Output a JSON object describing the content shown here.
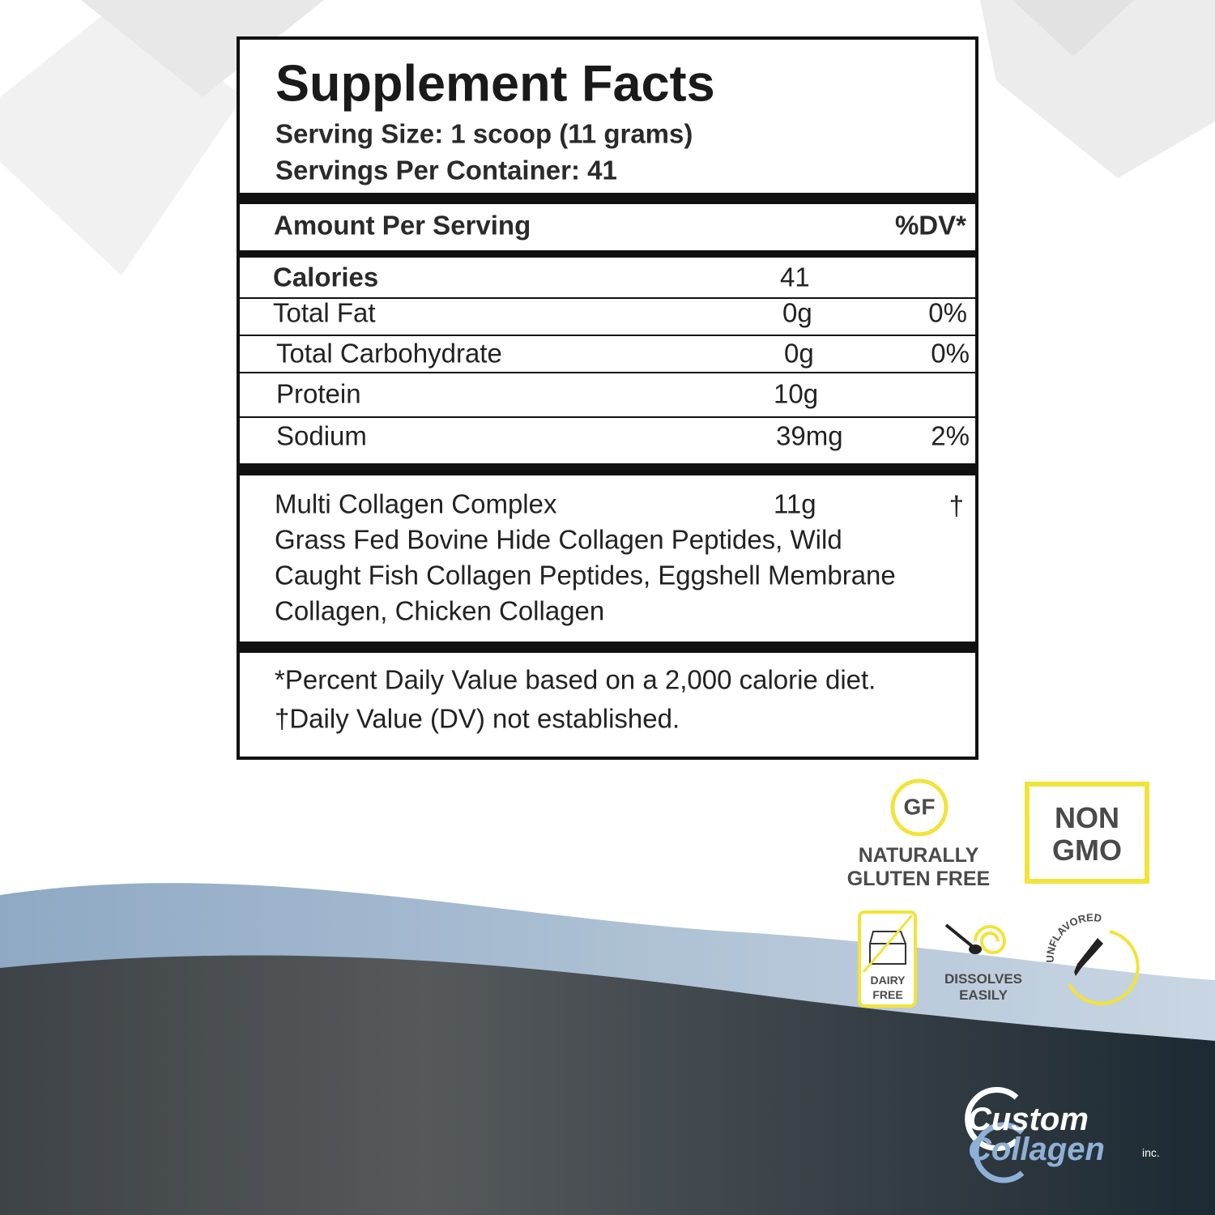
{
  "label": {
    "title": "Supplement Facts",
    "serving_size": "Serving Size: 1 scoop (11 grams)",
    "servings_per_container": "Servings Per Container: 41",
    "header": {
      "amount": "Amount Per Serving",
      "dv": "%DV*"
    },
    "rows": [
      {
        "name": "Calories",
        "amount": "41"
      },
      {
        "name": "Total Fat",
        "amount": "0g",
        "dv": "0%"
      },
      {
        "name": "Total Carbohydrate",
        "amount": "0g",
        "dv": "0%"
      },
      {
        "name": "Protein",
        "amount": "10g"
      },
      {
        "name": "Sodium",
        "amount": "39mg",
        "dv": "2%"
      }
    ],
    "blend": {
      "name": "Multi Collagen Complex",
      "amount": "11g",
      "dv": "†",
      "ingredients": [
        "Grass Fed Bovine Hide Collagen Peptides, Wild",
        "Caught Fish Collagen Peptides, Eggshell Membrane",
        "Collagen, Chicken Collagen"
      ]
    },
    "footnotes": [
      "*Percent Daily Value based on a 2,000 calorie diet.",
      "†Daily Value (DV) not established."
    ]
  },
  "badges": {
    "gf": "GF",
    "gluten_free": [
      "NATURALLY",
      "GLUTEN FREE"
    ],
    "non_gmo": [
      "NON",
      "GMO"
    ],
    "dairy_free": [
      "DAIRY",
      "FREE"
    ],
    "dissolves": [
      "DISSOLVES",
      "EASILY"
    ],
    "unflavored": "UNFLAVORED"
  },
  "brand": {
    "line1": "Custom",
    "line2": "Collagen",
    "suffix": "inc."
  }
}
